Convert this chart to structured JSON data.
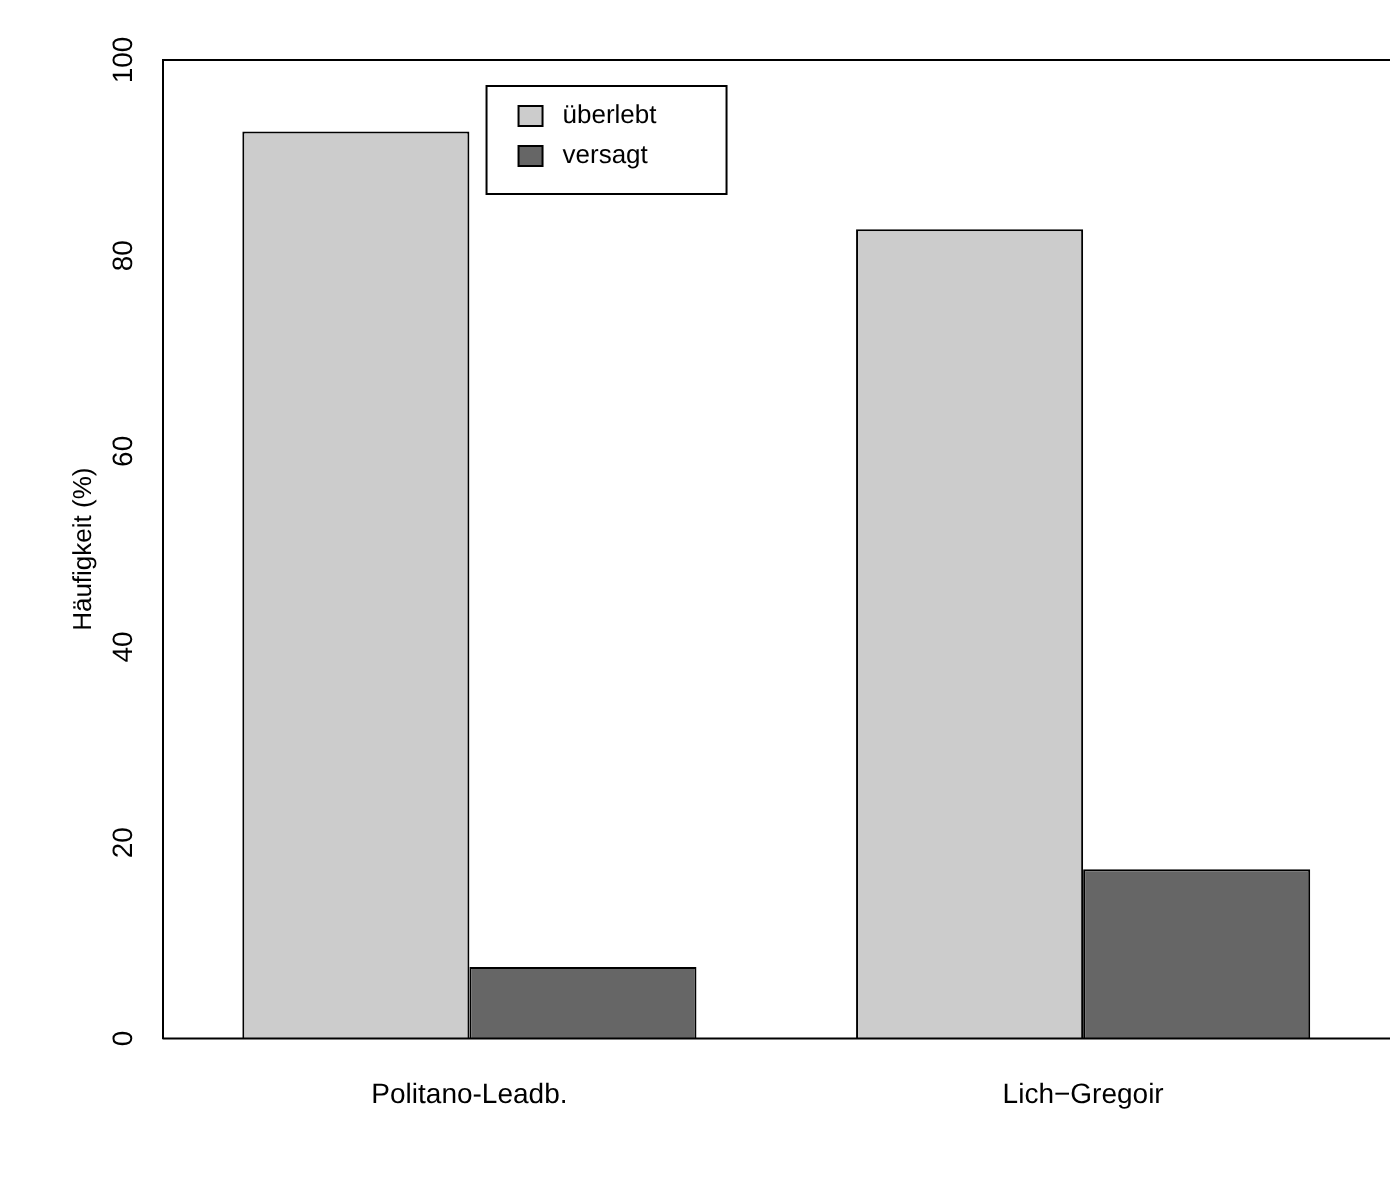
{
  "chart_data": {
    "type": "bar",
    "ylabel": "Häufigkeit (%)",
    "categories": [
      "Politano-Leadb.",
      "Lich−Gregoir"
    ],
    "series": [
      {
        "name": "überlebt",
        "color": "#cccccc",
        "values": [
          92.7,
          82.7
        ]
      },
      {
        "name": "versagt",
        "color": "#666666",
        "values": [
          7.3,
          17.3
        ]
      }
    ],
    "ylim": [
      0,
      100
    ],
    "yticks": [
      0,
      20,
      40,
      60,
      80,
      100
    ],
    "grid": false,
    "legend": "top left"
  }
}
